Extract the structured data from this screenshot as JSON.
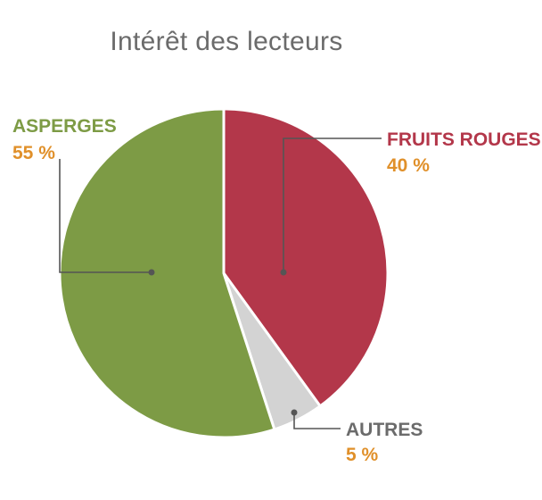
{
  "chart_data": {
    "type": "pie",
    "title": "Intérêt des lecteurs",
    "slices": [
      {
        "label": "FRUITS ROUGES",
        "value": 40,
        "value_label": "40 %",
        "color": "#b3374a"
      },
      {
        "label": "AUTRES",
        "value": 5,
        "value_label": "5 %",
        "color": "#d3d3d3",
        "label_color": "#6b6b6b"
      },
      {
        "label": "ASPERGES",
        "value": 55,
        "value_label": "55 %",
        "color": "#7d9b45"
      }
    ],
    "percent_color": "#e0902a",
    "leader_line_color": "#555555"
  }
}
